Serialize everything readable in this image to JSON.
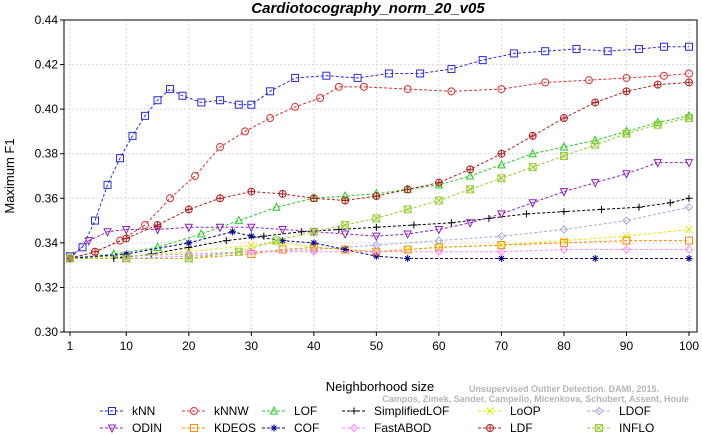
{
  "chart_data": {
    "type": "line",
    "title": "Cardiotocography_norm_20_v05",
    "xlabel": "Neighborhood size",
    "ylabel": "Maximum F1",
    "xlim": [
      1,
      100
    ],
    "ylim": [
      0.3,
      0.44
    ],
    "xticks": [
      1,
      10,
      20,
      30,
      40,
      50,
      60,
      70,
      80,
      90,
      100
    ],
    "yticks": [
      0.3,
      0.32,
      0.34,
      0.36,
      0.38,
      0.4,
      0.42,
      0.44
    ],
    "ytick_labels": [
      "0.30",
      "0.32",
      "0.34",
      "0.36",
      "0.38",
      "0.40",
      "0.42",
      "0.44"
    ],
    "grid": true,
    "legend_position": "bottom",
    "watermark": [
      "Unsupervised Outlier Detection. DAMI, 2015.",
      "Campos, Zimek, Sander, Campello, Micenkova, Schubert, Assent, Houle"
    ],
    "series": [
      {
        "name": "kNN",
        "color": "#2a2ae0",
        "marker": "square",
        "points": [
          [
            1,
            0.334
          ],
          [
            3,
            0.338
          ],
          [
            5,
            0.35
          ],
          [
            7,
            0.366
          ],
          [
            9,
            0.378
          ],
          [
            11,
            0.388
          ],
          [
            13,
            0.397
          ],
          [
            15,
            0.404
          ],
          [
            17,
            0.409
          ],
          [
            19,
            0.406
          ],
          [
            22,
            0.403
          ],
          [
            25,
            0.404
          ],
          [
            28,
            0.402
          ],
          [
            30,
            0.402
          ],
          [
            33,
            0.408
          ],
          [
            37,
            0.414
          ],
          [
            42,
            0.415
          ],
          [
            47,
            0.414
          ],
          [
            52,
            0.416
          ],
          [
            57,
            0.416
          ],
          [
            62,
            0.418
          ],
          [
            67,
            0.422
          ],
          [
            72,
            0.425
          ],
          [
            77,
            0.426
          ],
          [
            82,
            0.427
          ],
          [
            87,
            0.426
          ],
          [
            92,
            0.427
          ],
          [
            96,
            0.428
          ],
          [
            100,
            0.428
          ]
        ]
      },
      {
        "name": "kNNW",
        "color": "#e03030",
        "marker": "circle",
        "points": [
          [
            1,
            0.333
          ],
          [
            5,
            0.336
          ],
          [
            9,
            0.341
          ],
          [
            13,
            0.348
          ],
          [
            17,
            0.36
          ],
          [
            21,
            0.37
          ],
          [
            25,
            0.383
          ],
          [
            29,
            0.39
          ],
          [
            33,
            0.396
          ],
          [
            37,
            0.401
          ],
          [
            41,
            0.405
          ],
          [
            44,
            0.41
          ],
          [
            48,
            0.41
          ],
          [
            55,
            0.409
          ],
          [
            62,
            0.408
          ],
          [
            70,
            0.409
          ],
          [
            77,
            0.412
          ],
          [
            84,
            0.413
          ],
          [
            90,
            0.414
          ],
          [
            96,
            0.415
          ],
          [
            100,
            0.416
          ]
        ]
      },
      {
        "name": "LOF",
        "color": "#22cc22",
        "marker": "triangle-up",
        "points": [
          [
            1,
            0.333
          ],
          [
            8,
            0.335
          ],
          [
            15,
            0.338
          ],
          [
            22,
            0.344
          ],
          [
            28,
            0.35
          ],
          [
            34,
            0.356
          ],
          [
            40,
            0.36
          ],
          [
            45,
            0.361
          ],
          [
            50,
            0.362
          ],
          [
            55,
            0.364
          ],
          [
            60,
            0.366
          ],
          [
            65,
            0.37
          ],
          [
            70,
            0.375
          ],
          [
            75,
            0.38
          ],
          [
            80,
            0.383
          ],
          [
            85,
            0.386
          ],
          [
            90,
            0.39
          ],
          [
            95,
            0.394
          ],
          [
            100,
            0.397
          ]
        ]
      },
      {
        "name": "SimplifiedLOF",
        "color": "#000000",
        "marker": "plus",
        "points": [
          [
            1,
            0.333
          ],
          [
            8,
            0.333
          ],
          [
            14,
            0.335
          ],
          [
            20,
            0.338
          ],
          [
            26,
            0.341
          ],
          [
            32,
            0.343
          ],
          [
            38,
            0.345
          ],
          [
            44,
            0.346
          ],
          [
            50,
            0.347
          ],
          [
            56,
            0.348
          ],
          [
            62,
            0.349
          ],
          [
            68,
            0.351
          ],
          [
            74,
            0.353
          ],
          [
            80,
            0.354
          ],
          [
            86,
            0.355
          ],
          [
            92,
            0.356
          ],
          [
            97,
            0.358
          ],
          [
            100,
            0.36
          ]
        ]
      },
      {
        "name": "LoOP",
        "color": "#e6e600",
        "marker": "x",
        "points": [
          [
            1,
            0.333
          ],
          [
            10,
            0.334
          ],
          [
            20,
            0.336
          ],
          [
            30,
            0.339
          ],
          [
            35,
            0.34
          ],
          [
            40,
            0.338
          ],
          [
            45,
            0.337
          ],
          [
            50,
            0.336
          ],
          [
            55,
            0.337
          ],
          [
            60,
            0.338
          ],
          [
            70,
            0.339
          ],
          [
            80,
            0.341
          ],
          [
            90,
            0.343
          ],
          [
            100,
            0.346
          ]
        ]
      },
      {
        "name": "LDOF",
        "color": "#a8a8dc",
        "marker": "diamond",
        "points": [
          [
            1,
            0.334
          ],
          [
            10,
            0.334
          ],
          [
            20,
            0.335
          ],
          [
            30,
            0.336
          ],
          [
            40,
            0.337
          ],
          [
            50,
            0.339
          ],
          [
            60,
            0.341
          ],
          [
            70,
            0.343
          ],
          [
            80,
            0.346
          ],
          [
            90,
            0.35
          ],
          [
            100,
            0.356
          ]
        ]
      },
      {
        "name": "ODIN",
        "color": "#9020c0",
        "marker": "triangle-down",
        "points": [
          [
            1,
            0.333
          ],
          [
            4,
            0.341
          ],
          [
            7,
            0.345
          ],
          [
            10,
            0.346
          ],
          [
            15,
            0.346
          ],
          [
            20,
            0.347
          ],
          [
            25,
            0.347
          ],
          [
            30,
            0.347
          ],
          [
            35,
            0.346
          ],
          [
            40,
            0.345
          ],
          [
            45,
            0.344
          ],
          [
            50,
            0.343
          ],
          [
            55,
            0.344
          ],
          [
            60,
            0.346
          ],
          [
            65,
            0.349
          ],
          [
            70,
            0.353
          ],
          [
            75,
            0.358
          ],
          [
            80,
            0.363
          ],
          [
            85,
            0.367
          ],
          [
            90,
            0.371
          ],
          [
            95,
            0.376
          ],
          [
            100,
            0.376
          ]
        ]
      },
      {
        "name": "KDEOS",
        "color": "#ff8c00",
        "marker": "square",
        "points": [
          [
            1,
            0.333
          ],
          [
            10,
            0.333
          ],
          [
            20,
            0.333
          ],
          [
            30,
            0.335
          ],
          [
            35,
            0.337
          ],
          [
            40,
            0.338
          ],
          [
            45,
            0.337
          ],
          [
            50,
            0.336
          ],
          [
            55,
            0.337
          ],
          [
            60,
            0.338
          ],
          [
            70,
            0.339
          ],
          [
            80,
            0.34
          ],
          [
            90,
            0.341
          ],
          [
            100,
            0.341
          ]
        ]
      },
      {
        "name": "COF",
        "color": "#000088",
        "marker": "star",
        "points": [
          [
            1,
            0.333
          ],
          [
            10,
            0.335
          ],
          [
            20,
            0.34
          ],
          [
            27,
            0.345
          ],
          [
            30,
            0.343
          ],
          [
            35,
            0.341
          ],
          [
            40,
            0.34
          ],
          [
            45,
            0.337
          ],
          [
            50,
            0.334
          ],
          [
            55,
            0.333
          ],
          [
            70,
            0.333
          ],
          [
            85,
            0.333
          ],
          [
            100,
            0.333
          ]
        ]
      },
      {
        "name": "FastABOD",
        "color": "#ff88ff",
        "marker": "diamond",
        "points": [
          [
            1,
            0.333
          ],
          [
            10,
            0.333
          ],
          [
            20,
            0.334
          ],
          [
            30,
            0.336
          ],
          [
            40,
            0.336
          ],
          [
            50,
            0.336
          ],
          [
            60,
            0.336
          ],
          [
            70,
            0.336
          ],
          [
            80,
            0.337
          ],
          [
            90,
            0.337
          ],
          [
            100,
            0.337
          ]
        ]
      },
      {
        "name": "LDF",
        "color": "#b22222",
        "marker": "circle-cross",
        "points": [
          [
            1,
            0.333
          ],
          [
            5,
            0.336
          ],
          [
            10,
            0.342
          ],
          [
            15,
            0.348
          ],
          [
            20,
            0.355
          ],
          [
            25,
            0.36
          ],
          [
            30,
            0.363
          ],
          [
            35,
            0.362
          ],
          [
            40,
            0.36
          ],
          [
            45,
            0.359
          ],
          [
            50,
            0.361
          ],
          [
            55,
            0.364
          ],
          [
            60,
            0.367
          ],
          [
            65,
            0.373
          ],
          [
            70,
            0.38
          ],
          [
            75,
            0.388
          ],
          [
            80,
            0.396
          ],
          [
            85,
            0.403
          ],
          [
            90,
            0.408
          ],
          [
            95,
            0.411
          ],
          [
            100,
            0.412
          ]
        ]
      },
      {
        "name": "INFLO",
        "color": "#99cc33",
        "marker": "square-x",
        "points": [
          [
            1,
            0.333
          ],
          [
            10,
            0.333
          ],
          [
            20,
            0.333
          ],
          [
            28,
            0.336
          ],
          [
            34,
            0.341
          ],
          [
            40,
            0.345
          ],
          [
            45,
            0.348
          ],
          [
            50,
            0.351
          ],
          [
            55,
            0.355
          ],
          [
            60,
            0.359
          ],
          [
            65,
            0.364
          ],
          [
            70,
            0.369
          ],
          [
            75,
            0.374
          ],
          [
            80,
            0.379
          ],
          [
            85,
            0.384
          ],
          [
            90,
            0.389
          ],
          [
            95,
            0.393
          ],
          [
            100,
            0.396
          ]
        ]
      }
    ]
  }
}
